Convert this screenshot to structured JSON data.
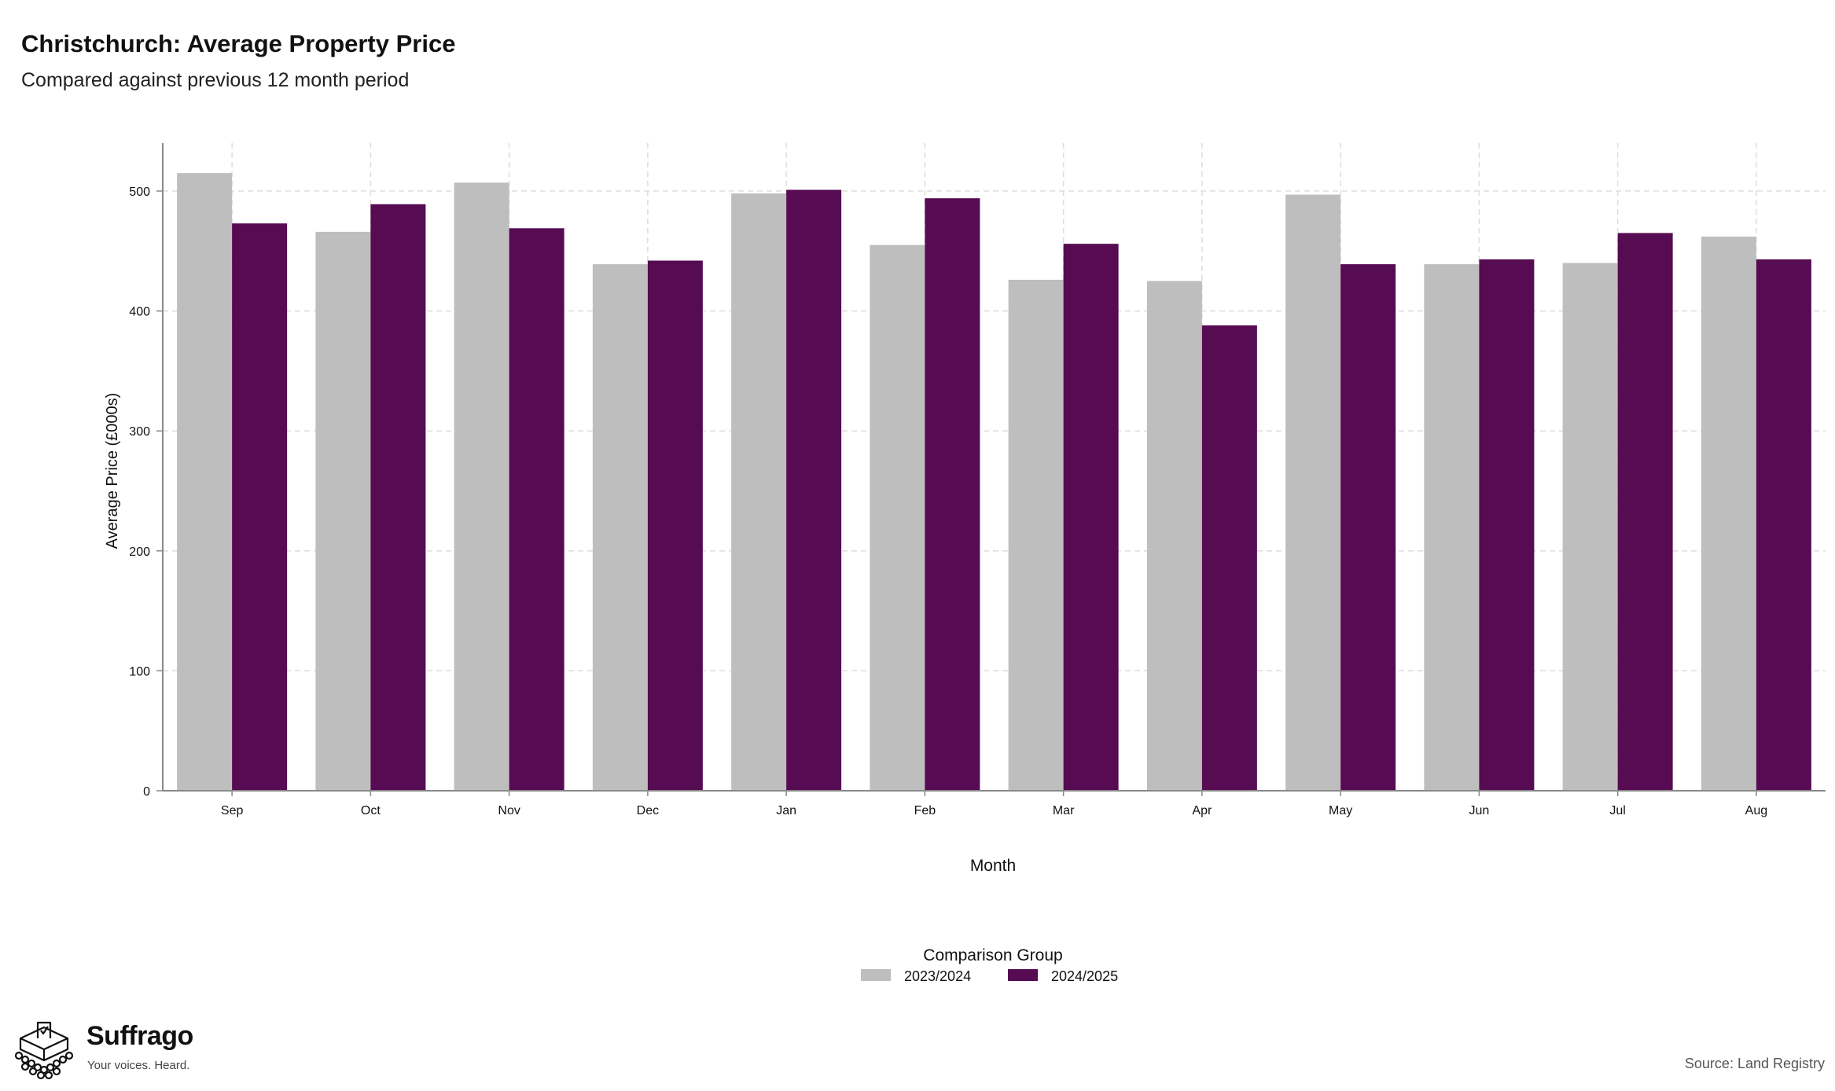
{
  "header": {
    "title": "Christchurch: Average Property Price",
    "subtitle": "Compared against previous 12 month period"
  },
  "chart_data": {
    "type": "bar",
    "title": "Christchurch: Average Property Price",
    "subtitle": "Compared against previous 12 month period",
    "xlabel": "Month",
    "ylabel": "Average Price (£000s)",
    "ylim": [
      0,
      540
    ],
    "yticks": [
      0,
      100,
      200,
      300,
      400,
      500
    ],
    "grid": true,
    "legend_title": "Comparison Group",
    "legend_position": "bottom",
    "categories": [
      "Sep",
      "Oct",
      "Nov",
      "Dec",
      "Jan",
      "Feb",
      "Mar",
      "Apr",
      "May",
      "Jun",
      "Jul",
      "Aug"
    ],
    "series": [
      {
        "name": "2023/2024",
        "color": "#bebebe",
        "values": [
          515,
          466,
          507,
          439,
          498,
          455,
          426,
          425,
          497,
          439,
          440,
          462
        ]
      },
      {
        "name": "2024/2025",
        "color": "#560b52",
        "values": [
          473,
          489,
          469,
          442,
          501,
          494,
          456,
          388,
          439,
          443,
          465,
          443
        ]
      }
    ]
  },
  "branding": {
    "name": "Suffrago",
    "tagline": "Your voices. Heard.",
    "logo_icon": "ballot-box-crowd-icon"
  },
  "footer": {
    "source": "Source: Land Registry"
  }
}
